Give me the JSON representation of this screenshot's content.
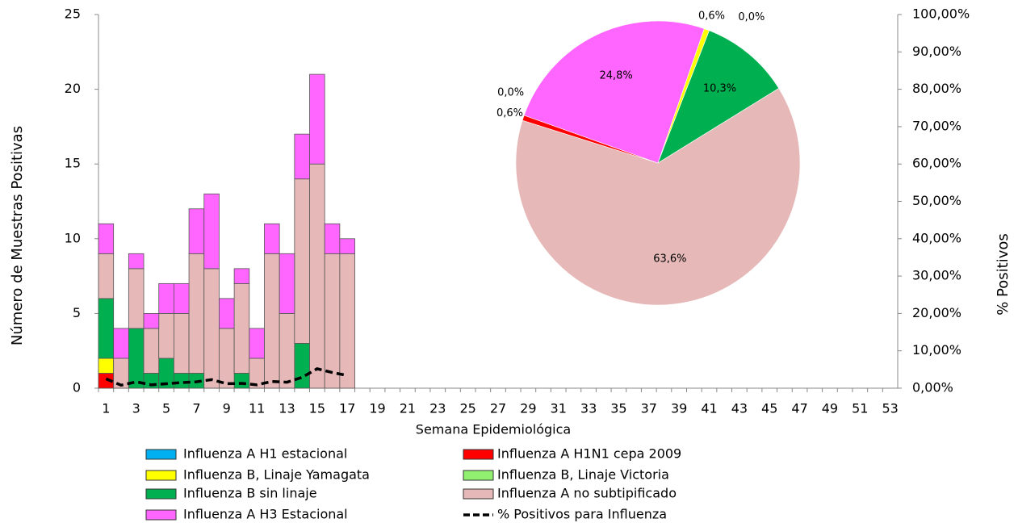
{
  "chart_data": [
    {
      "type": "bar",
      "stacked": true,
      "y_label": "Número de Muestras Positivas",
      "y2_label": "% Positivos",
      "x_label": "Semana Epidemiológica",
      "categories": [
        1,
        null,
        3,
        null,
        5,
        null,
        7,
        null,
        9,
        null,
        11,
        null,
        13,
        null,
        15,
        null,
        17,
        null,
        19,
        null,
        21,
        null,
        23,
        null,
        25,
        null,
        27,
        null,
        29,
        null,
        31,
        null,
        33,
        null,
        35,
        null,
        37,
        null,
        39,
        null,
        41,
        null,
        43,
        null,
        45,
        null,
        47,
        null,
        49,
        null,
        51,
        null,
        53
      ],
      "ylim": [
        0,
        25
      ],
      "yticks": [
        0,
        5,
        10,
        15,
        20,
        25
      ],
      "y2lim": [
        0,
        100
      ],
      "y2ticks": [
        {
          "value": 0,
          "label": "0,00%"
        },
        {
          "value": 10,
          "label": "10,00%"
        },
        {
          "value": 20,
          "label": "20,00%"
        },
        {
          "value": 30,
          "label": "30,00%"
        },
        {
          "value": 40,
          "label": "40,00%"
        },
        {
          "value": 50,
          "label": "50,00%"
        },
        {
          "value": 60,
          "label": "60,00%"
        },
        {
          "value": 70,
          "label": "70,00%"
        },
        {
          "value": 80,
          "label": "80,00%"
        },
        {
          "value": 90,
          "label": "90,00%"
        },
        {
          "value": 100,
          "label": "100,00%"
        }
      ],
      "series": [
        {
          "name": "Influenza A H1 estacional",
          "color": "#00b0f0",
          "values": [
            0,
            0,
            0,
            0,
            0,
            0,
            0,
            0,
            0,
            0,
            0,
            0,
            0,
            0,
            0,
            0,
            0,
            null,
            null,
            null,
            null,
            null,
            null,
            null,
            null,
            null,
            null,
            null,
            null,
            null,
            null,
            null,
            null,
            null,
            null,
            null,
            null,
            null,
            null,
            null,
            null,
            null,
            null,
            null,
            null,
            null,
            null,
            null,
            null,
            null,
            null,
            null,
            null
          ]
        },
        {
          "name": "Influenza A H1N1 cepa 2009",
          "color": "#ff0000",
          "values": [
            1,
            0,
            0,
            0,
            0,
            0,
            0,
            0,
            0,
            0,
            0,
            0,
            0,
            0,
            0,
            0,
            0,
            null,
            null,
            null,
            null,
            null,
            null,
            null,
            null,
            null,
            null,
            null,
            null,
            null,
            null,
            null,
            null,
            null,
            null,
            null,
            null,
            null,
            null,
            null,
            null,
            null,
            null,
            null,
            null,
            null,
            null,
            null,
            null,
            null,
            null,
            null,
            null
          ]
        },
        {
          "name": "Influenza B, Linaje Yamagata",
          "color": "#ffff00",
          "values": [
            1,
            0,
            0,
            0,
            0,
            0,
            0,
            0,
            0,
            0,
            0,
            0,
            0,
            0,
            0,
            0,
            0,
            null,
            null,
            null,
            null,
            null,
            null,
            null,
            null,
            null,
            null,
            null,
            null,
            null,
            null,
            null,
            null,
            null,
            null,
            null,
            null,
            null,
            null,
            null,
            null,
            null,
            null,
            null,
            null,
            null,
            null,
            null,
            null,
            null,
            null,
            null,
            null
          ]
        },
        {
          "name": "Influenza B, Linaje Victoria",
          "color": "#92f070",
          "values": [
            0,
            0,
            0,
            0,
            0,
            0,
            0,
            0,
            0,
            0,
            0,
            0,
            0,
            0,
            0,
            0,
            0,
            null,
            null,
            null,
            null,
            null,
            null,
            null,
            null,
            null,
            null,
            null,
            null,
            null,
            null,
            null,
            null,
            null,
            null,
            null,
            null,
            null,
            null,
            null,
            null,
            null,
            null,
            null,
            null,
            null,
            null,
            null,
            null,
            null,
            null,
            null,
            null
          ]
        },
        {
          "name": "Influenza B sin linaje",
          "color": "#00b050",
          "values": [
            4,
            0,
            4,
            1,
            2,
            1,
            1,
            0,
            0,
            1,
            0,
            0,
            0,
            3,
            0,
            0,
            0,
            null,
            null,
            null,
            null,
            null,
            null,
            null,
            null,
            null,
            null,
            null,
            null,
            null,
            null,
            null,
            null,
            null,
            null,
            null,
            null,
            null,
            null,
            null,
            null,
            null,
            null,
            null,
            null,
            null,
            null,
            null,
            null,
            null,
            null,
            null,
            null
          ]
        },
        {
          "name": "Influenza A no subtipificado",
          "color": "#e6b9b8",
          "values": [
            3,
            2,
            4,
            3,
            3,
            4,
            8,
            8,
            4,
            6,
            2,
            9,
            5,
            11,
            15,
            9,
            9,
            null,
            null,
            null,
            null,
            null,
            null,
            null,
            null,
            null,
            null,
            null,
            null,
            null,
            null,
            null,
            null,
            null,
            null,
            null,
            null,
            null,
            null,
            null,
            null,
            null,
            null,
            null,
            null,
            null,
            null,
            null,
            null,
            null,
            null,
            null,
            null
          ]
        },
        {
          "name": "Influenza A H3 Estacional",
          "color": "#ff66ff",
          "values": [
            2,
            2,
            1,
            1,
            2,
            2,
            3,
            5,
            2,
            1,
            2,
            2,
            4,
            3,
            6,
            2,
            1,
            null,
            null,
            null,
            null,
            null,
            null,
            null,
            null,
            null,
            null,
            null,
            null,
            null,
            null,
            null,
            null,
            null,
            null,
            null,
            null,
            null,
            null,
            null,
            null,
            null,
            null,
            null,
            null,
            null,
            null,
            null,
            null,
            null,
            null,
            null,
            null
          ]
        },
        {
          "name": "% Positivos para Influenza",
          "type": "line",
          "axis": "y2",
          "dashed": true,
          "color": "#000000",
          "values": [
            2.5,
            0.8,
            1.7,
            0.9,
            1.2,
            1.5,
            1.7,
            2.3,
            1.2,
            1.3,
            0.9,
            1.8,
            1.6,
            2.9,
            5.2,
            4.2,
            3.4,
            null,
            null,
            null,
            null,
            null,
            null,
            null,
            null,
            null,
            null,
            null,
            null,
            null,
            null,
            null,
            null,
            null,
            null,
            null,
            null,
            null,
            null,
            null,
            null,
            null,
            null,
            null,
            null,
            null,
            null,
            null,
            null,
            null,
            null,
            null,
            null
          ]
        }
      ]
    },
    {
      "type": "pie",
      "values": [
        0.6,
        0,
        10.3,
        63.6,
        0.6,
        0,
        24.8
      ],
      "value_labels": [
        "0,6%",
        "0,0%",
        "10,3%",
        "63,6%",
        "0,6%",
        "0,0%",
        "24,8%"
      ],
      "colors": [
        "#ffff00",
        "#92f070",
        "#00b050",
        "#e6b9b8",
        "#ff0000",
        "#00b0f0",
        "#ff66ff"
      ]
    }
  ]
}
